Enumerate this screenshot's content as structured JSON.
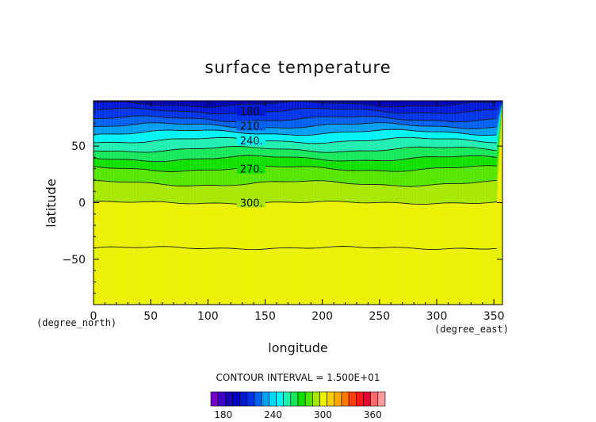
{
  "chart_data": {
    "type": "heatmap",
    "title": "surface temperature",
    "xlabel": "longitude",
    "ylabel": "latitude",
    "x_unit": "(degree_east)",
    "y_unit": "(degree_north)",
    "xlim": [
      0,
      357.5
    ],
    "ylim": [
      -90,
      90
    ],
    "xticks": [
      0,
      50,
      100,
      150,
      200,
      250,
      300,
      350
    ],
    "yticks": [
      -50,
      0,
      50
    ],
    "yticklabels": [
      "−50",
      "0",
      "50"
    ],
    "contour_interval_text": "CONTOUR INTERVAL = 1.500E+01",
    "contour_interval": 15,
    "contour_labels": [
      {
        "level": 180,
        "text": "180."
      },
      {
        "level": 210,
        "text": "210."
      },
      {
        "level": 240,
        "text": "240."
      },
      {
        "level": 270,
        "text": "270."
      },
      {
        "level": 300,
        "text": "300."
      }
    ],
    "level_boundaries": [
      -40,
      0,
      17,
      30,
      39,
      47,
      55,
      62,
      68,
      74,
      81,
      87
    ],
    "level_colors": [
      "#ebf100",
      "#a8e800",
      "#55e600",
      "#10e000",
      "#16e85a",
      "#1fefb0",
      "#00f3f5",
      "#009ef5",
      "#0060f0",
      "#0034e8",
      "#0018d8",
      "#0000b5"
    ],
    "colorbar": {
      "ticks": [
        180,
        240,
        300,
        360
      ],
      "colors": [
        "#7400c8",
        "#4000c8",
        "#1800b4",
        "#0000c0",
        "#0018d0",
        "#0034e8",
        "#0060f0",
        "#009ef5",
        "#00d8f8",
        "#00f3f5",
        "#1fefb0",
        "#16e85a",
        "#10e000",
        "#55e600",
        "#a8e800",
        "#ebf100",
        "#f6d000",
        "#ffaa00",
        "#ff7a00",
        "#ff4000",
        "#ff1818",
        "#e80030",
        "#ff6a6a",
        "#ff9c9c"
      ]
    }
  }
}
